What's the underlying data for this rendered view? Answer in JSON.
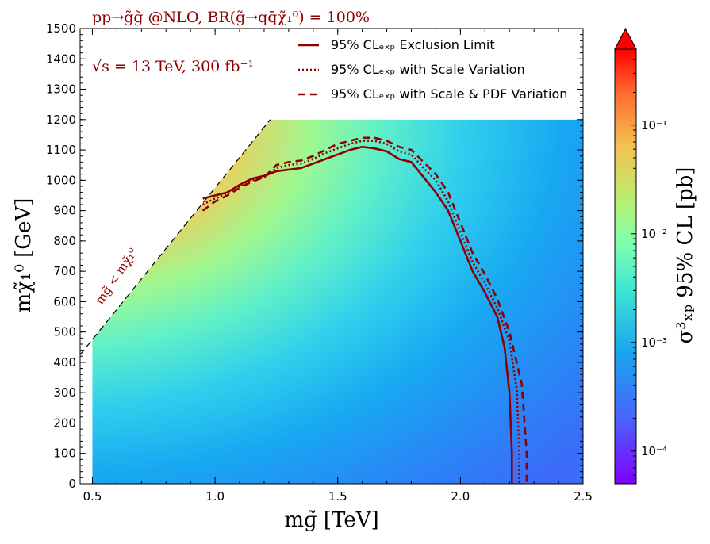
{
  "chart_data": {
    "type": "heatmap",
    "title": "pp→g̃g̃ @NLO, BR(g̃→qq̄χ̃₁⁰) = 100%",
    "annotation_energy": "√s = 13 TeV, 300 fb⁻¹",
    "diagonal_label": "mɡ̃ < mχ̃₁⁰",
    "xlabel": "mɡ̃ [TeV]",
    "ylabel": "mχ̃₁⁰ [GeV]",
    "colorbar_label": "σ³ₓₚ 95% CL [pb]",
    "xlim": [
      0.45,
      2.5
    ],
    "ylim": [
      0,
      1500
    ],
    "x_ticks": [
      "0.5",
      "1.0",
      "1.5",
      "2.0",
      "2.5"
    ],
    "y_ticks": [
      "0",
      "100",
      "200",
      "300",
      "400",
      "500",
      "600",
      "700",
      "800",
      "900",
      "1000",
      "1100",
      "1200",
      "1300",
      "1400",
      "1500"
    ],
    "colorbar_ticks": [
      "10⁻¹",
      "10⁻²",
      "10⁻³",
      "10⁻⁴"
    ],
    "colorbar_range": [
      5e-05,
      0.5
    ],
    "colorbar_scale": "log",
    "grid": false,
    "legend_placement": "top-right",
    "colors": {
      "contour": "#8b0000",
      "annotation": "#8b0000"
    },
    "series": [
      {
        "name": "95% CLₑₓₚ Exclusion Limit",
        "style": "solid",
        "x": [
          0.95,
          1.0,
          1.05,
          1.1,
          1.15,
          1.2,
          1.25,
          1.3,
          1.35,
          1.4,
          1.45,
          1.5,
          1.55,
          1.6,
          1.65,
          1.7,
          1.75,
          1.8,
          1.85,
          1.9,
          1.95,
          2.0,
          2.05,
          2.1,
          2.15,
          2.18,
          2.2,
          2.21,
          2.21
        ],
        "y": [
          940,
          950,
          960,
          985,
          1005,
          1015,
          1030,
          1035,
          1040,
          1055,
          1070,
          1085,
          1100,
          1110,
          1105,
          1095,
          1070,
          1060,
          1010,
          960,
          900,
          800,
          700,
          630,
          550,
          450,
          300,
          100,
          0
        ]
      },
      {
        "name": "95% CLₑₓₚ with Scale Variation",
        "style": "dotted",
        "x": [
          0.95,
          1.0,
          1.05,
          1.1,
          1.15,
          1.2,
          1.25,
          1.3,
          1.35,
          1.4,
          1.45,
          1.5,
          1.55,
          1.6,
          1.65,
          1.7,
          1.75,
          1.8,
          1.85,
          1.9,
          1.95,
          2.0,
          2.05,
          2.1,
          2.15,
          2.2,
          2.23,
          2.24,
          2.24
        ],
        "y": [
          920,
          940,
          955,
          980,
          1000,
          1010,
          1040,
          1050,
          1055,
          1070,
          1090,
          1105,
          1120,
          1130,
          1130,
          1120,
          1095,
          1085,
          1040,
          1000,
          930,
          830,
          730,
          660,
          580,
          470,
          310,
          100,
          0
        ]
      },
      {
        "name": "95% CLₑₓₚ with Scale & PDF Variation",
        "style": "dashed",
        "x": [
          0.95,
          1.0,
          1.05,
          1.1,
          1.15,
          1.2,
          1.25,
          1.3,
          1.35,
          1.4,
          1.45,
          1.5,
          1.55,
          1.6,
          1.65,
          1.7,
          1.75,
          1.8,
          1.85,
          1.9,
          1.95,
          2.0,
          2.05,
          2.1,
          2.15,
          2.2,
          2.25,
          2.27,
          2.27
        ],
        "y": [
          900,
          930,
          950,
          975,
          995,
          1010,
          1050,
          1060,
          1065,
          1080,
          1100,
          1120,
          1130,
          1140,
          1140,
          1130,
          1110,
          1100,
          1060,
          1020,
          960,
          860,
          760,
          690,
          610,
          500,
          330,
          100,
          0
        ]
      }
    ]
  }
}
